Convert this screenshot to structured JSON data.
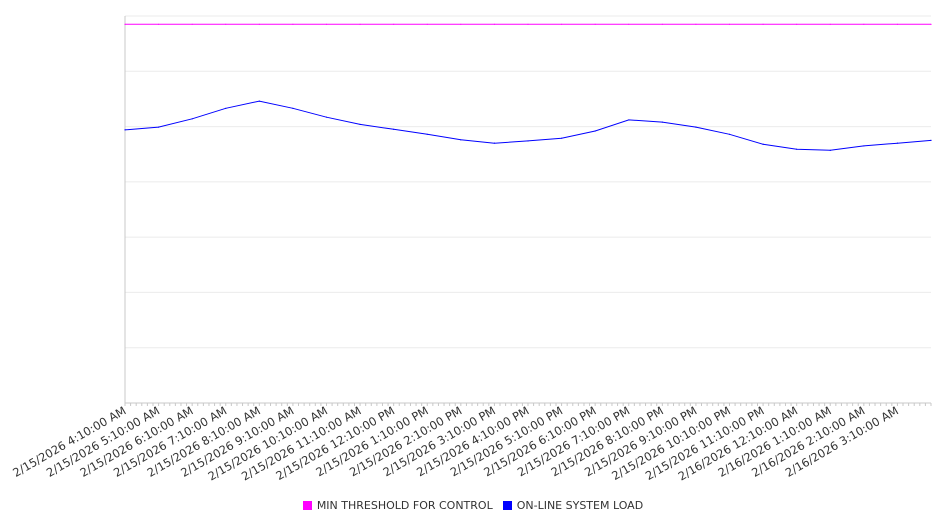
{
  "chart_data": {
    "type": "line",
    "title": "",
    "xlabel": "",
    "ylabel": "",
    "ylim": [
      0,
      7
    ],
    "grid": true,
    "legend_position": "bottom",
    "x_hours": [
      0,
      1,
      2,
      3,
      4,
      5,
      6,
      7,
      8,
      9,
      10,
      11,
      12,
      13,
      14,
      15,
      16,
      17,
      18,
      19,
      20,
      21,
      22,
      23,
      24
    ],
    "tick_labels": [
      "2/15/2026 4:10:00 AM",
      "2/15/2026 5:10:00 AM",
      "2/15/2026 6:10:00 AM",
      "2/15/2026 7:10:00 AM",
      "2/15/2026 8:10:00 AM",
      "2/15/2026 9:10:00 AM",
      "2/15/2026 10:10:00 AM",
      "2/15/2026 11:10:00 AM",
      "2/15/2026 12:10:00 PM",
      "2/15/2026 1:10:00 PM",
      "2/15/2026 2:10:00 PM",
      "2/15/2026 3:10:00 PM",
      "2/15/2026 4:10:00 PM",
      "2/15/2026 5:10:00 PM",
      "2/15/2026 6:10:00 PM",
      "2/15/2026 7:10:00 PM",
      "2/15/2026 8:10:00 PM",
      "2/15/2026 9:10:00 PM",
      "2/15/2026 10:10:00 PM",
      "2/15/2026 11:10:00 PM",
      "2/16/2026 12:10:00 AM",
      "2/16/2026 1:10:00 AM",
      "2/16/2026 2:10:00 AM",
      "2/16/2026 3:10:00 AM"
    ],
    "series": [
      {
        "name": "MIN THRESHOLD FOR CONTROL",
        "color": "#ff00ff",
        "values": [
          6.85,
          6.85,
          6.85,
          6.85,
          6.85,
          6.85,
          6.85,
          6.85,
          6.85,
          6.85,
          6.85,
          6.85,
          6.85,
          6.85,
          6.85,
          6.85,
          6.85,
          6.85,
          6.85,
          6.85,
          6.85,
          6.85,
          6.85,
          6.85,
          6.85
        ]
      },
      {
        "name": "ON-LINE SYSTEM LOAD",
        "color": "#0000ff",
        "values": [
          4.94,
          4.99,
          5.14,
          5.33,
          5.46,
          5.33,
          5.17,
          5.04,
          4.95,
          4.86,
          4.76,
          4.7,
          4.74,
          4.79,
          4.92,
          5.12,
          5.08,
          4.99,
          4.86,
          4.68,
          4.59,
          4.57,
          4.65,
          4.7,
          4.75
        ]
      }
    ]
  }
}
